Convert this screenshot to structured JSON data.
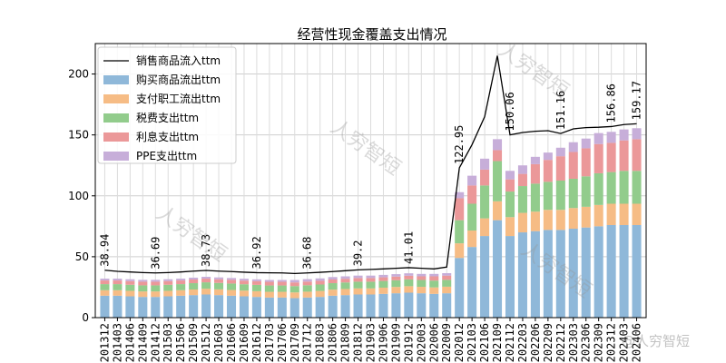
{
  "chart_data": {
    "type": "bar",
    "title": "经营性现金覆盖支出情况",
    "xlabel": "",
    "ylabel": "",
    "ylim": [
      0,
      225
    ],
    "yticks": [
      0,
      50,
      100,
      150,
      200
    ],
    "grid": true,
    "legend_position": "top-left",
    "categories": [
      "201312",
      "201403",
      "201406",
      "201409",
      "201412",
      "201503",
      "201506",
      "201509",
      "201512",
      "201603",
      "201606",
      "201609",
      "201612",
      "201703",
      "201706",
      "201709",
      "201712",
      "201803",
      "201806",
      "201809",
      "201812",
      "201903",
      "201906",
      "201909",
      "201912",
      "202003",
      "202006",
      "202009",
      "202012",
      "202103",
      "202106",
      "202109",
      "202112",
      "202203",
      "202206",
      "202209",
      "202212",
      "202303",
      "202306",
      "202309",
      "202312",
      "202403",
      "202406"
    ],
    "x_tick_labels": [
      "201312",
      "201403",
      "201406",
      "201409",
      "201412",
      "201503",
      "201506",
      "201509",
      "201512",
      "201603",
      "201606",
      "201609",
      "201612",
      "201703",
      "201706",
      "201709",
      "201712",
      "201803",
      "201806",
      "201809",
      "201812",
      "201903",
      "201906",
      "201909",
      "201912",
      "202003",
      "202006",
      "202009",
      "202012",
      "202103",
      "202106",
      "202109",
      "202112",
      "202203",
      "202206",
      "202209",
      "202212",
      "202303",
      "202306",
      "202309",
      "202312",
      "202403",
      "202406"
    ],
    "line": {
      "name": "销售商品流入ttm",
      "color": "#000000",
      "values": [
        38.94,
        38,
        37.5,
        37,
        36.69,
        37,
        37.5,
        38.2,
        38.73,
        38.2,
        37.8,
        37.3,
        36.92,
        36.8,
        36.7,
        36.2,
        36.68,
        37.2,
        37.8,
        38.5,
        39.2,
        39.6,
        40,
        40.5,
        41.01,
        40.5,
        40,
        41.5,
        122.95,
        142,
        165,
        215,
        150.06,
        152,
        153,
        153.5,
        151.16,
        155,
        156,
        156.3,
        156.86,
        158.5,
        159.17
      ]
    },
    "series": [
      {
        "name": "购买商品流出ttm",
        "color": "#8fb8d9",
        "values": [
          18,
          18,
          17.5,
          17,
          17,
          17.5,
          18,
          18.5,
          19,
          18.5,
          18,
          17.5,
          17,
          16.5,
          16.5,
          16,
          16.5,
          17,
          18,
          18.5,
          19,
          19,
          19.5,
          20,
          20.5,
          20,
          19.5,
          20,
          49,
          58,
          67,
          80,
          67,
          70,
          71,
          72,
          72,
          73,
          74,
          75,
          76,
          76,
          76
        ]
      },
      {
        "name": "支付职工流出ttm",
        "color": "#f6bc85",
        "values": [
          4.5,
          4.5,
          4.5,
          4.5,
          4.5,
          4.5,
          4.5,
          4.6,
          4.7,
          4.7,
          4.7,
          4.7,
          4.7,
          4.7,
          4.7,
          4.7,
          4.8,
          4.9,
          5,
          5,
          5,
          5,
          5.1,
          5.2,
          5.3,
          5.3,
          5.3,
          5.4,
          12,
          13.5,
          14.5,
          15.5,
          15.5,
          16,
          16,
          16.5,
          16.5,
          17,
          17,
          17.5,
          17.5,
          17.5,
          17.5
        ]
      },
      {
        "name": "税费支出ttm",
        "color": "#92cc8c",
        "values": [
          5,
          5,
          5,
          5,
          5,
          5,
          5,
          5.2,
          5.3,
          5.3,
          5.3,
          5.2,
          5.2,
          5.2,
          5.2,
          5.2,
          5.3,
          5.3,
          5.3,
          5.4,
          5.5,
          5.5,
          5.5,
          5.5,
          5.6,
          5.6,
          5.6,
          5.6,
          19,
          22,
          27,
          33,
          21,
          22,
          23,
          23,
          24,
          24,
          25,
          26,
          26,
          27,
          27
        ]
      },
      {
        "name": "利息支出ttm",
        "color": "#eb9899",
        "values": [
          3,
          3,
          3,
          3,
          3,
          3,
          3,
          3,
          3,
          3,
          3,
          3,
          3,
          3,
          3,
          3,
          3,
          3,
          3,
          3,
          3,
          3,
          3,
          3,
          3,
          3,
          3.5,
          3.5,
          18,
          15,
          13,
          9,
          10,
          10,
          16,
          18,
          20,
          22,
          23,
          24,
          24,
          25,
          26
        ]
      },
      {
        "name": "PPE支出ttm",
        "color": "#c7aed9",
        "values": [
          1.5,
          1.5,
          1.5,
          1.5,
          1.5,
          1.5,
          1.5,
          1.5,
          1.5,
          1.5,
          1.5,
          1.5,
          1.5,
          1.5,
          1.5,
          2,
          2,
          2,
          2,
          2,
          2,
          2,
          2,
          2,
          2,
          2,
          2,
          2,
          5,
          8,
          9,
          9,
          7,
          7,
          6,
          6,
          7,
          8,
          8,
          9,
          9,
          9,
          9
        ]
      }
    ],
    "annotations": [
      {
        "index": 0,
        "text": "38.94"
      },
      {
        "index": 4,
        "text": "36.69"
      },
      {
        "index": 8,
        "text": "38.73"
      },
      {
        "index": 12,
        "text": "36.92"
      },
      {
        "index": 16,
        "text": "36.68"
      },
      {
        "index": 20,
        "text": "39.2"
      },
      {
        "index": 24,
        "text": "41.01"
      },
      {
        "index": 28,
        "text": "122.95"
      },
      {
        "index": 32,
        "text": "150.06"
      },
      {
        "index": 36,
        "text": "151.16"
      },
      {
        "index": 40,
        "text": "156.86"
      },
      {
        "index": 42,
        "text": "159.17"
      }
    ]
  },
  "watermarks": {
    "main": "人穷智短",
    "corner": "@人穷智短"
  }
}
